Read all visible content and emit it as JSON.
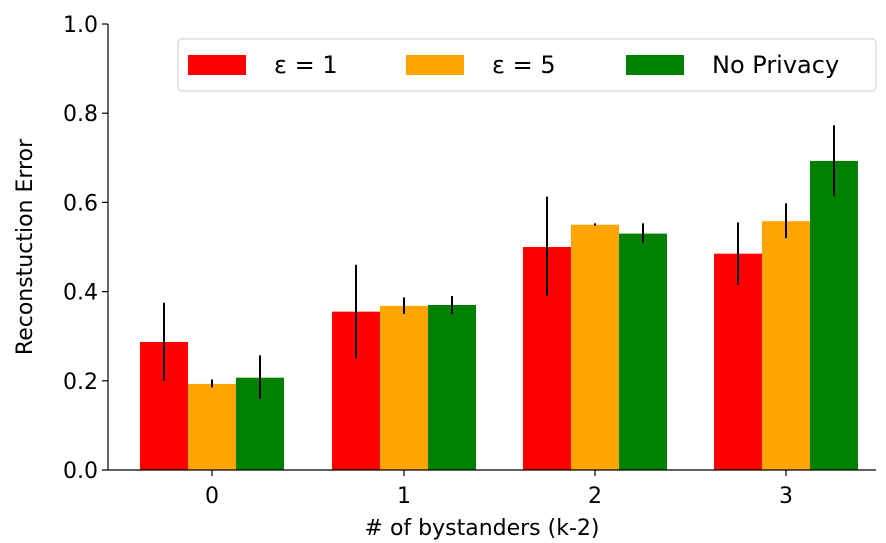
{
  "chart_data": {
    "type": "bar",
    "categories": [
      "0",
      "1",
      "2",
      "3"
    ],
    "series": [
      {
        "name": "ε = 1",
        "color": "#ff0000",
        "values": [
          0.287,
          0.355,
          0.5,
          0.485
        ],
        "err_low": [
          0.2,
          0.25,
          0.39,
          0.415
        ],
        "err_high": [
          0.375,
          0.46,
          0.613,
          0.555
        ]
      },
      {
        "name": "ε = 5",
        "color": "#ffa500",
        "values": [
          0.193,
          0.368,
          0.55,
          0.558
        ],
        "err_low": [
          0.185,
          0.35,
          0.548,
          0.52
        ],
        "err_high": [
          0.203,
          0.387,
          0.553,
          0.598
        ]
      },
      {
        "name": "No Privacy",
        "color": "#008000",
        "values": [
          0.207,
          0.37,
          0.53,
          0.693
        ],
        "err_low": [
          0.16,
          0.35,
          0.51,
          0.615
        ],
        "err_high": [
          0.257,
          0.39,
          0.553,
          0.773
        ]
      }
    ],
    "xlabel": "# of bystanders (k-2)",
    "ylabel": "Reconstuction Error",
    "ylim": [
      0,
      1.0
    ],
    "yticks": [
      "0.0",
      "0.2",
      "0.4",
      "0.6",
      "0.8",
      "1.0"
    ],
    "grid": false,
    "legend": "top-right",
    "legend_ncol": 3
  }
}
